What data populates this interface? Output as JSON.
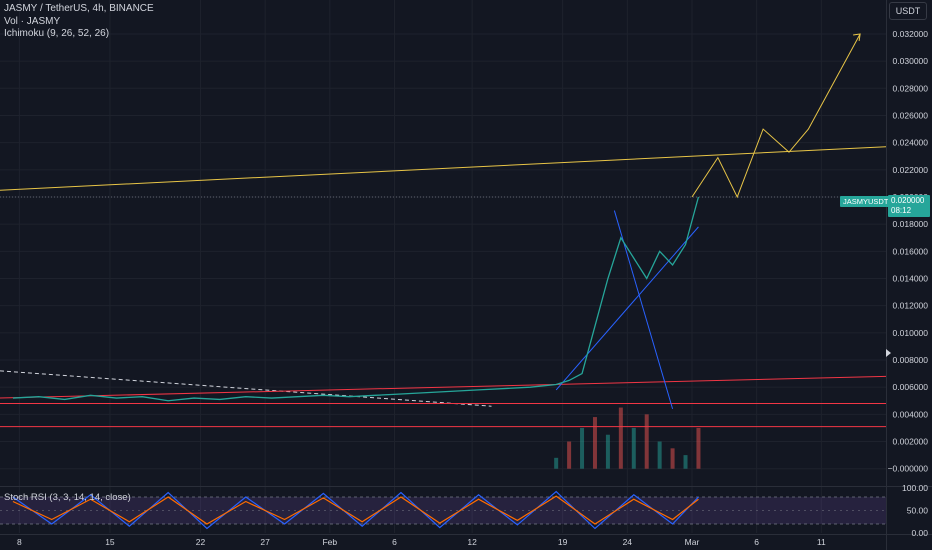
{
  "header": {
    "symbol_line": "JASMY / TetherUS, 4h, BINANCE",
    "vol_line": "Vol · JASMY",
    "ichimoku_line": "Ichimoku (9, 26, 52, 26)"
  },
  "currency_label": "USDT",
  "last_price": {
    "symbol": "JASMYUSDT",
    "price": "0.020000",
    "countdown": "08:12",
    "value": 0.02
  },
  "stoch_label": "Stoch RSI (3, 3, 14, 14, close)",
  "colors": {
    "background": "#131722",
    "up": "#26a69a",
    "down": "#ef5350",
    "projection": "#e8c547",
    "trendline_blue": "#2962ff",
    "resistance_red": "#f23645",
    "cloud": "#880e4f",
    "stoch_k": "#2962ff",
    "stoch_d": "#ff6d00",
    "stoch_band": "#7e57c2"
  },
  "chart_data": [
    {
      "type": "line",
      "title": "JASMY / TetherUS, 4h, BINANCE",
      "ylim": [
        -0.0012,
        0.0345
      ],
      "y_ticks": [
        "0.032000",
        "0.030000",
        "0.028000",
        "0.026000",
        "0.024000",
        "0.022000",
        "0.020000",
        "0.018000",
        "0.016000",
        "0.014000",
        "0.012000",
        "0.010000",
        "0.008000",
        "0.006000",
        "0.004000",
        "0.002000",
        "−0.000000"
      ],
      "y_tick_values": [
        0.032,
        0.03,
        0.028,
        0.026,
        0.024,
        0.022,
        0.02,
        0.018,
        0.016,
        0.014,
        0.012,
        0.01,
        0.008,
        0.006,
        0.004,
        0.002,
        0.0
      ],
      "x_ticks": [
        "8",
        "15",
        "22",
        "27",
        "Feb",
        "6",
        "12",
        "19",
        "24",
        "Mar",
        "6",
        "11"
      ],
      "x_tick_positions": [
        0.5,
        7.5,
        14.5,
        19.5,
        24.5,
        29.5,
        35.5,
        42.5,
        47.5,
        52.5,
        57.5,
        62.5
      ],
      "series": [
        {
          "role": "close",
          "x": [
            0,
            2,
            4,
            6,
            8,
            10,
            12,
            14,
            16,
            18,
            20,
            22,
            24,
            26,
            28,
            30,
            32,
            34,
            36,
            38,
            40,
            42,
            43,
            44,
            45,
            46,
            47,
            48,
            49,
            50,
            51,
            52,
            53
          ],
          "y": [
            0.0052,
            0.0053,
            0.0051,
            0.0054,
            0.0052,
            0.0053,
            0.005,
            0.0052,
            0.0051,
            0.0053,
            0.0052,
            0.0053,
            0.0054,
            0.0053,
            0.0054,
            0.0055,
            0.0056,
            0.0057,
            0.0058,
            0.0059,
            0.006,
            0.0062,
            0.0065,
            0.007,
            0.0105,
            0.014,
            0.017,
            0.0155,
            0.014,
            0.016,
            0.015,
            0.0165,
            0.02
          ]
        },
        {
          "role": "volume",
          "x": [
            42,
            43,
            44,
            45,
            46,
            47,
            48,
            49,
            50,
            51,
            52,
            53
          ],
          "y": [
            0.0008,
            0.002,
            0.003,
            0.0038,
            0.0025,
            0.0045,
            0.003,
            0.004,
            0.002,
            0.0015,
            0.001,
            0.003
          ]
        }
      ],
      "lines": [
        {
          "role": "projection",
          "x": [
            52.5,
            54.5,
            56,
            58,
            60,
            61.5,
            65.5
          ],
          "y": [
            0.02,
            0.0229,
            0.02,
            0.025,
            0.0233,
            0.025,
            0.032
          ]
        },
        {
          "role": "resistance_trend",
          "x": [
            -1,
            67.5
          ],
          "y": [
            0.0205,
            0.0237
          ]
        },
        {
          "role": "falling_trend",
          "x": [
            -1,
            37
          ],
          "y": [
            0.0072,
            0.0046
          ]
        },
        {
          "role": "support_red",
          "x": [
            -1,
            67.5
          ],
          "y": [
            0.0052,
            0.0068
          ]
        },
        {
          "role": "horizontal_red",
          "x": [
            -1,
            67.5
          ],
          "y": [
            0.0048,
            0.0048
          ]
        },
        {
          "role": "horizontal_red_2",
          "x": [
            -1,
            67.5
          ],
          "y": [
            0.0031,
            0.0031
          ]
        },
        {
          "role": "blue_fan_1",
          "x": [
            42,
            53
          ],
          "y": [
            0.0058,
            0.0178
          ]
        },
        {
          "role": "blue_fan_2",
          "x": [
            46.5,
            51
          ],
          "y": [
            0.019,
            0.0044
          ]
        }
      ]
    },
    {
      "type": "line",
      "title": "Stoch RSI (3, 3, 14, 14, close)",
      "ylim": [
        0,
        100
      ],
      "y_ticks": [
        "100.00",
        "50.00",
        "0.00"
      ],
      "y_tick_values": [
        100,
        50,
        0
      ],
      "bands": [
        80,
        20
      ],
      "series": [
        {
          "role": "k",
          "x": [
            0,
            3,
            6,
            9,
            12,
            15,
            18,
            21,
            24,
            27,
            30,
            33,
            36,
            39,
            42,
            45,
            48,
            51,
            53
          ],
          "y": [
            80,
            20,
            85,
            15,
            90,
            10,
            80,
            20,
            88,
            15,
            90,
            12,
            85,
            18,
            92,
            10,
            85,
            20,
            80
          ]
        },
        {
          "role": "d",
          "x": [
            0,
            3,
            6,
            9,
            12,
            15,
            18,
            21,
            24,
            27,
            30,
            33,
            36,
            39,
            42,
            45,
            48,
            51,
            53
          ],
          "y": [
            70,
            30,
            75,
            25,
            80,
            20,
            70,
            30,
            78,
            25,
            80,
            22,
            75,
            28,
            82,
            20,
            75,
            30,
            75
          ]
        }
      ]
    }
  ]
}
